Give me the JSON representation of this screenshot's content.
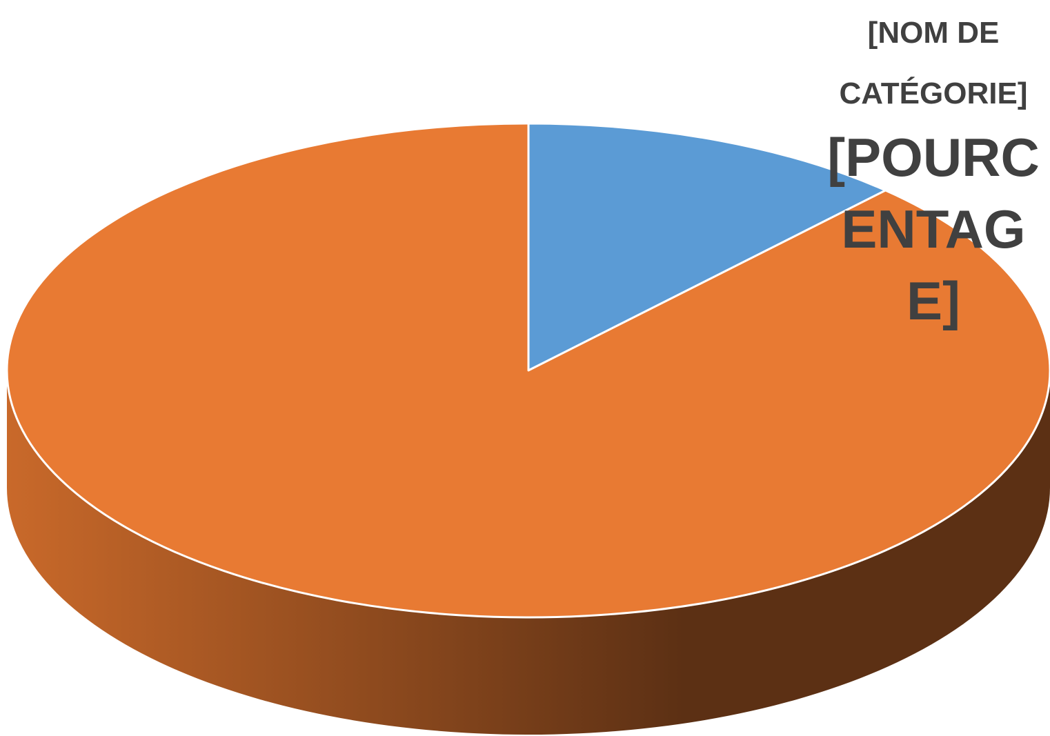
{
  "chart_data": {
    "type": "pie",
    "style": "3d",
    "title": "",
    "slices": [
      {
        "label": "",
        "value": 12,
        "color": "#5B9BD5"
      },
      {
        "label": "",
        "value": 88,
        "color": "#ED7D31"
      }
    ],
    "data_label": {
      "category": "[NOM DE CATÉGORIE]",
      "percentage": "[POURCENTAGE]"
    },
    "legend": "none"
  },
  "colors": {
    "blue_slice": "#5B9BD5",
    "orange_slice": "#E87A33",
    "side_light": "#C9692A",
    "side_dark": "#5C3014",
    "label_text": "#404040"
  }
}
